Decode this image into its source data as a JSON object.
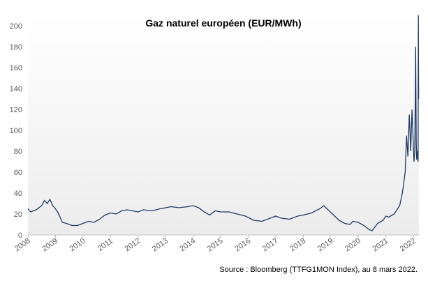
{
  "chart_data": {
    "type": "line",
    "title": "Gaz naturel européen (EUR/MWh)",
    "source": "Source : Bloomberg (TTFG1MON Index), au 8 mars 2022.",
    "series": [
      {
        "color": "#1f3864",
        "x": [
          2008.0,
          2008.1,
          2008.3,
          2008.5,
          2008.6,
          2008.7,
          2008.8,
          2008.9,
          2009.0,
          2009.1,
          2009.25,
          2009.4,
          2009.6,
          2009.8,
          2010.0,
          2010.2,
          2010.4,
          2010.6,
          2010.8,
          2011.0,
          2011.2,
          2011.4,
          2011.6,
          2011.8,
          2012.0,
          2012.2,
          2012.5,
          2012.8,
          2013.0,
          2013.2,
          2013.5,
          2013.8,
          2014.0,
          2014.2,
          2014.4,
          2014.6,
          2014.8,
          2015.0,
          2015.3,
          2015.6,
          2015.9,
          2016.2,
          2016.5,
          2016.8,
          2017.0,
          2017.2,
          2017.5,
          2017.8,
          2018.0,
          2018.3,
          2018.6,
          2018.75,
          2018.9,
          2019.1,
          2019.3,
          2019.5,
          2019.7,
          2019.8,
          2020.0,
          2020.2,
          2020.4,
          2020.5,
          2020.7,
          2020.9,
          2021.0,
          2021.1,
          2021.3,
          2021.5,
          2021.6,
          2021.7,
          2021.75,
          2021.8,
          2021.85,
          2021.9,
          2021.95,
          2022.0,
          2022.02,
          2022.05,
          2022.08,
          2022.1,
          2022.12,
          2022.15,
          2022.17,
          2022.18,
          2022.19
        ],
        "values": [
          25,
          22,
          24,
          28,
          33,
          30,
          34,
          28,
          25,
          21,
          12,
          11,
          9,
          9,
          11,
          13,
          12,
          15,
          19,
          21,
          20,
          23,
          24,
          23,
          22,
          24,
          23,
          25,
          26,
          27,
          26,
          27,
          28,
          26,
          22,
          19,
          23,
          22,
          22,
          20,
          18,
          14,
          13,
          16,
          18,
          16,
          15,
          18,
          19,
          21,
          25,
          28,
          24,
          19,
          14,
          11,
          10,
          13,
          12,
          9,
          5,
          4,
          11,
          14,
          18,
          17,
          20,
          28,
          40,
          60,
          95,
          75,
          115,
          80,
          120,
          85,
          70,
          80,
          180,
          90,
          72,
          80,
          70,
          210,
          130
        ]
      }
    ],
    "xlim": [
      2008,
      2022.2
    ],
    "xticks": [
      2008,
      2009,
      2010,
      2011,
      2012,
      2013,
      2014,
      2015,
      2016,
      2017,
      2018,
      2019,
      2020,
      2021,
      2022
    ],
    "ylim": [
      0,
      210
    ],
    "yticks": [
      0,
      20,
      40,
      60,
      80,
      100,
      120,
      140,
      160,
      180,
      200
    ]
  }
}
